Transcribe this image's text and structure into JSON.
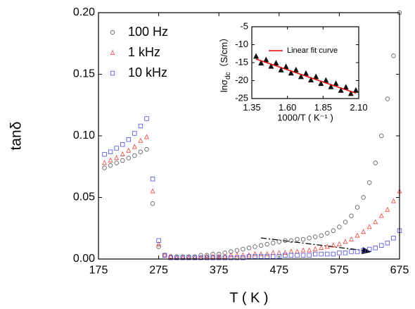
{
  "chart_data": [
    {
      "type": "scatter",
      "x_label": "T ( K )",
      "y_label": "tanδ",
      "x": [
        185,
        195,
        205,
        215,
        225,
        235,
        245,
        255,
        265,
        275,
        285,
        295,
        305,
        315,
        325,
        335,
        345,
        355,
        365,
        375,
        385,
        395,
        405,
        415,
        425,
        435,
        445,
        455,
        465,
        475,
        485,
        495,
        505,
        515,
        525,
        535,
        545,
        555,
        565,
        575,
        585,
        595,
        605,
        615,
        625,
        635,
        645,
        655,
        665,
        675
      ],
      "series": [
        {
          "name": "100 Hz",
          "color": "#555555",
          "marker": "circle",
          "values": [
            0.074,
            0.076,
            0.078,
            0.08,
            0.082,
            0.084,
            0.087,
            0.089,
            0.045,
            0.01,
            0.003,
            0.002,
            0.002,
            0.002,
            0.002,
            0.002,
            0.003,
            0.003,
            0.004,
            0.004,
            0.005,
            0.006,
            0.007,
            0.008,
            0.009,
            0.01,
            0.011,
            0.012,
            0.013,
            0.014,
            0.015,
            0.015,
            0.016,
            0.016,
            0.017,
            0.018,
            0.019,
            0.021,
            0.023,
            0.026,
            0.03,
            0.035,
            0.042,
            0.05,
            0.062,
            0.078,
            0.1,
            0.13,
            0.165,
            0.2
          ]
        },
        {
          "name": "1 kHz",
          "color": "#e8473f",
          "marker": "triangle",
          "values": [
            0.078,
            0.08,
            0.082,
            0.085,
            0.088,
            0.091,
            0.096,
            0.099,
            0.055,
            0.012,
            0.003,
            0.002,
            0.001,
            0.001,
            0.001,
            0.001,
            0.001,
            0.002,
            0.002,
            0.002,
            0.002,
            0.003,
            0.003,
            0.003,
            0.003,
            0.004,
            0.004,
            0.004,
            0.005,
            0.005,
            0.005,
            0.006,
            0.006,
            0.007,
            0.007,
            0.008,
            0.009,
            0.01,
            0.011,
            0.012,
            0.014,
            0.016,
            0.019,
            0.022,
            0.026,
            0.03,
            0.035,
            0.04,
            0.047,
            0.055
          ]
        },
        {
          "name": "10 kHz",
          "color": "#4a4ae0",
          "marker": "square",
          "values": [
            0.085,
            0.087,
            0.09,
            0.093,
            0.097,
            0.102,
            0.108,
            0.114,
            0.065,
            0.015,
            0.003,
            0.001,
            0.001,
            0.001,
            0.001,
            0.001,
            0.001,
            0.001,
            0.001,
            0.001,
            0.001,
            0.001,
            0.001,
            0.001,
            0.002,
            0.002,
            0.002,
            0.002,
            0.002,
            0.002,
            0.003,
            0.003,
            0.003,
            0.003,
            0.003,
            0.004,
            0.004,
            0.004,
            0.004,
            0.005,
            0.005,
            0.006,
            0.006,
            0.007,
            0.008,
            0.009,
            0.011,
            0.013,
            0.017,
            0.023
          ]
        }
      ],
      "xlim": [
        175,
        675
      ],
      "xticks": [
        175,
        275,
        375,
        475,
        575,
        675
      ],
      "ylim": [
        0,
        0.2
      ],
      "yticks": [
        {
          "value": 0,
          "label": "0.00"
        },
        {
          "value": 0.05,
          "label": "0.05"
        },
        {
          "value": 0.1,
          "label": "0.10"
        },
        {
          "value": 0.15,
          "label": "0.15"
        },
        {
          "value": 0.2,
          "label": "0.20"
        }
      ],
      "legend": "upper left"
    },
    {
      "type": "scatter",
      "x_label": "1000/T ( K⁻¹ )",
      "y_label": "lnσ",
      "y_label_sub": "dc",
      "y_label_unit": "（S/cm）",
      "series": [
        {
          "color": "#111111",
          "marker": "filled-triangle",
          "x": [
            1.38,
            1.415,
            1.45,
            1.485,
            1.52,
            1.555,
            1.59,
            1.625,
            1.66,
            1.695,
            1.73,
            1.765,
            1.8,
            1.835,
            1.87,
            1.905,
            1.94,
            1.975,
            2.01,
            2.045,
            2.08
          ],
          "values": [
            -13.3,
            -15.2,
            -14.3,
            -16.1,
            -15.2,
            -17.1,
            -16.2,
            -18.0,
            -17.1,
            -19.0,
            -18.1,
            -19.9,
            -19.0,
            -20.9,
            -20.0,
            -21.8,
            -20.9,
            -22.8,
            -21.9,
            -23.7,
            -22.8
          ]
        },
        {
          "name": "Linear fit curve",
          "color": "#e00000",
          "marker": "line",
          "x": [
            1.38,
            2.08
          ],
          "values": [
            -14.0,
            -23.5
          ]
        }
      ],
      "xlim": [
        1.35,
        2.1
      ],
      "xticks": [
        1.35,
        {
          "value": 1.6,
          "label": "1.60"
        },
        1.85,
        {
          "value": 2.1,
          "label": "2.10"
        }
      ],
      "ylim": [
        -25,
        -5
      ],
      "yticks": [
        -25,
        -20,
        -15,
        -10,
        -5
      ],
      "legend": "upper left"
    }
  ]
}
